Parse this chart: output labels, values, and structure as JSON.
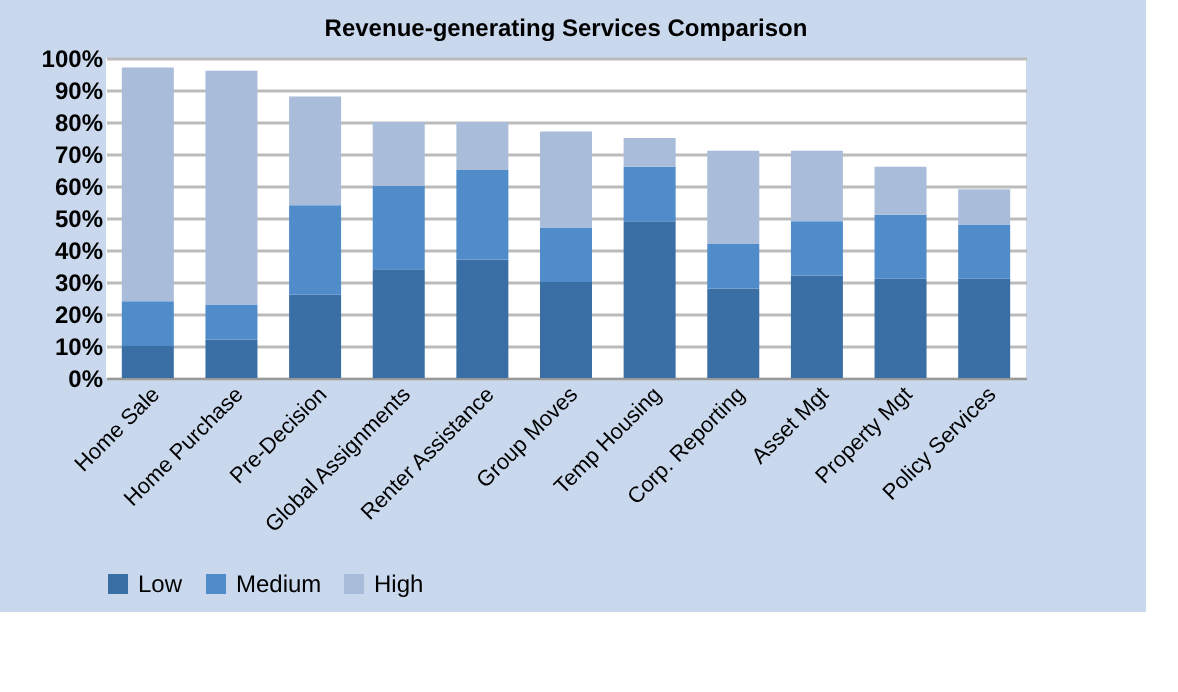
{
  "chart_data": {
    "type": "bar",
    "title": "Revenue-generating Services Comparison",
    "stacked": true,
    "legend": "bottom",
    "grid": "y",
    "categories": [
      "Home Sale",
      "Home Purchase",
      "Pre-Decision",
      "Global Assignments",
      "Renter Assistance",
      "Group Moves",
      "Temp Housing",
      "Corp. Reporting",
      "Asset Mgt",
      "Property Mgt",
      "Policy Services"
    ],
    "series": [
      {
        "name": "Low",
        "color": "#3a6fa6",
        "values": [
          10,
          12,
          26,
          34,
          37,
          30,
          49,
          28,
          32,
          31,
          31
        ]
      },
      {
        "name": "Medium",
        "color": "#4f8cc9",
        "values": [
          14,
          11,
          28,
          26,
          28,
          17,
          17,
          14,
          17,
          20,
          17
        ]
      },
      {
        "name": "High",
        "color": "#a9bcd9",
        "values": [
          73,
          73,
          34,
          20,
          15,
          30,
          9,
          29,
          22,
          15,
          11
        ]
      }
    ],
    "ylim": [
      0,
      100
    ],
    "yticks": [
      {
        "value": 0,
        "label": "0%"
      },
      {
        "value": 10,
        "label": "10%"
      },
      {
        "value": 20,
        "label": "20%"
      },
      {
        "value": 30,
        "label": "30%"
      },
      {
        "value": 40,
        "label": "40%"
      },
      {
        "value": 50,
        "label": "50%"
      },
      {
        "value": 60,
        "label": "60%"
      },
      {
        "value": 70,
        "label": "70%"
      },
      {
        "value": 80,
        "label": "80%"
      },
      {
        "value": 90,
        "label": "90%"
      },
      {
        "value": 100,
        "label": "100%"
      }
    ]
  }
}
